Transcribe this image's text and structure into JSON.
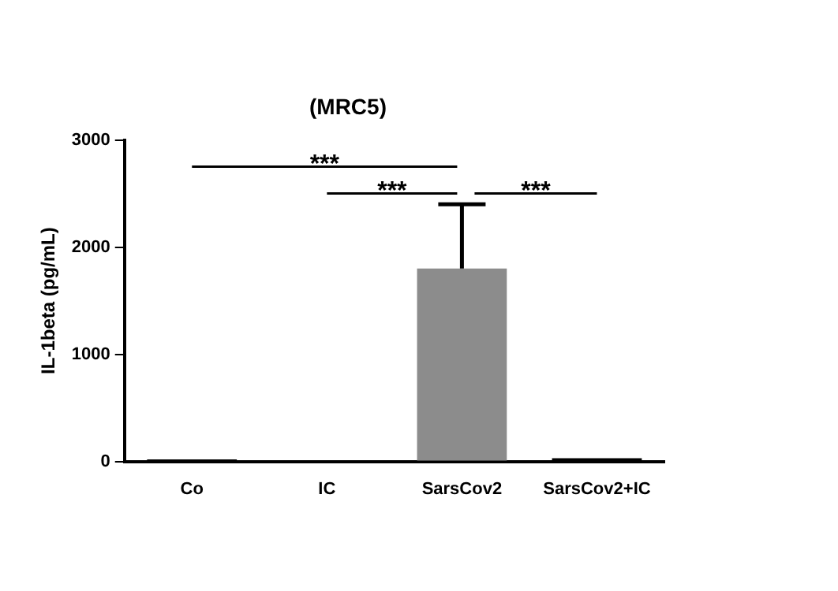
{
  "chart_data": {
    "type": "bar",
    "title": "(MRC5)",
    "ylabel": "IL-1beta (pg/mL)",
    "categories": [
      "Co",
      "IC",
      "SarsCov2",
      "SarsCov2+IC"
    ],
    "values": [
      20,
      10,
      1800,
      30
    ],
    "errors": [
      null,
      null,
      [
        1800,
        2400
      ],
      null
    ],
    "colors": [
      "#000000",
      "#000000",
      "#8c8c8c",
      "#000000"
    ],
    "ylim": [
      0,
      3000
    ],
    "yticks": [
      0,
      1000,
      2000,
      3000
    ],
    "grid": false,
    "legend": false,
    "annotations": [
      "***",
      "***",
      "***"
    ]
  }
}
